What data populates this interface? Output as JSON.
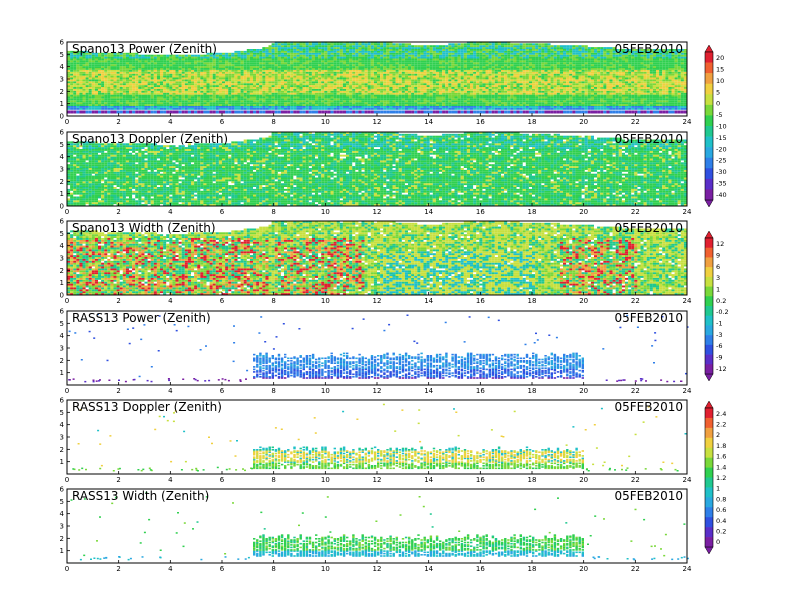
{
  "figure": {
    "date": "05FEB2010"
  },
  "colors": {
    "power_doppler_scale": [
      "#7a1fa2",
      "#5a2fc8",
      "#3050e0",
      "#2f7fe8",
      "#2aa8e0",
      "#20c0c8",
      "#20c890",
      "#30d050",
      "#7ad83a",
      "#c8e040",
      "#f0d040",
      "#f0a040",
      "#f06030",
      "#e02030"
    ],
    "width_scale": [
      "#7a1fa2",
      "#5a2fc8",
      "#3050e0",
      "#2f7fe8",
      "#2aa8e0",
      "#20c0c8",
      "#20c890",
      "#30d050",
      "#7ad83a",
      "#c8e040",
      "#f0d040",
      "#f0a040",
      "#f06030",
      "#e02030"
    ]
  },
  "chart_data": [
    {
      "type": "heatmap",
      "title": "Spano13 Power (Zenith)",
      "date": "05FEB2010",
      "x_ticks": [
        0,
        2,
        4,
        6,
        8,
        10,
        12,
        14,
        16,
        18,
        20,
        22,
        24
      ],
      "y_ticks": [
        0,
        1,
        2,
        3,
        4,
        5,
        6
      ],
      "xlim": [
        0,
        24
      ],
      "ylim": [
        0,
        6
      ],
      "fill_heights_by_hour": [
        [
          0,
          5.2
        ],
        [
          2,
          5.0
        ],
        [
          4,
          4.9
        ],
        [
          6,
          5.0
        ],
        [
          7.7,
          5.5
        ],
        [
          8,
          6.0
        ],
        [
          12,
          6.0
        ],
        [
          14,
          5.6
        ],
        [
          16,
          6.0
        ],
        [
          20,
          5.6
        ],
        [
          22,
          5.3
        ],
        [
          24,
          5.3
        ]
      ],
      "gap_below": 0.5,
      "palette": "power"
    },
    {
      "type": "heatmap",
      "title": "Spano13 Doppler (Zenith)",
      "date": "05FEB2010",
      "x_ticks": [
        0,
        2,
        4,
        6,
        8,
        10,
        12,
        14,
        16,
        18,
        20,
        22,
        24
      ],
      "y_ticks": [
        0,
        1,
        2,
        3,
        4,
        5,
        6
      ],
      "xlim": [
        0,
        24
      ],
      "ylim": [
        0,
        6
      ],
      "fill_heights_by_hour": [
        [
          0,
          5.2
        ],
        [
          2,
          5.0
        ],
        [
          4,
          4.9
        ],
        [
          6,
          5.0
        ],
        [
          7.7,
          5.5
        ],
        [
          8,
          6.0
        ],
        [
          12,
          6.0
        ],
        [
          14,
          5.6
        ],
        [
          16,
          6.0
        ],
        [
          20,
          5.6
        ],
        [
          22,
          5.3
        ],
        [
          24,
          5.3
        ]
      ],
      "gap_below": 0.0,
      "palette": "doppler"
    },
    {
      "type": "heatmap",
      "title": "Spano13 Width (Zenith)",
      "date": "05FEB2010",
      "x_ticks": [
        0,
        2,
        4,
        6,
        8,
        10,
        12,
        14,
        16,
        18,
        20,
        22,
        24
      ],
      "y_ticks": [
        0,
        1,
        2,
        3,
        4,
        5,
        6
      ],
      "xlim": [
        0,
        24
      ],
      "ylim": [
        0,
        6
      ],
      "fill_heights_by_hour": [
        [
          0,
          5.2
        ],
        [
          2,
          5.0
        ],
        [
          4,
          4.9
        ],
        [
          6,
          5.0
        ],
        [
          7.7,
          5.5
        ],
        [
          8,
          6.0
        ],
        [
          12,
          6.0
        ],
        [
          14,
          5.6
        ],
        [
          16,
          6.0
        ],
        [
          20,
          5.6
        ],
        [
          22,
          5.3
        ],
        [
          24,
          5.3
        ]
      ],
      "gap_below": 0.0,
      "palette": "width"
    },
    {
      "type": "heatmap",
      "title": "RASS13 Power (Zenith)",
      "date": "05FEB2010",
      "x_ticks": [
        0,
        2,
        4,
        6,
        8,
        10,
        12,
        14,
        16,
        18,
        20,
        22,
        24
      ],
      "y_ticks": [
        1,
        2,
        3,
        4,
        5,
        6
      ],
      "xlim": [
        0,
        24
      ],
      "ylim": [
        0,
        6
      ],
      "core_band": [
        7.2,
        20.0,
        0.5,
        2.6
      ],
      "palette": "rass_power"
    },
    {
      "type": "heatmap",
      "title": "RASS13 Doppler (Zenith)",
      "date": "05FEB2010",
      "x_ticks": [
        0,
        2,
        4,
        6,
        8,
        10,
        12,
        14,
        16,
        18,
        20,
        22,
        24
      ],
      "y_ticks": [
        1,
        2,
        3,
        4,
        5,
        6
      ],
      "xlim": [
        0,
        24
      ],
      "ylim": [
        0,
        6
      ],
      "core_band": [
        7.2,
        20.0,
        0.4,
        2.2
      ],
      "palette": "rass_doppler"
    },
    {
      "type": "heatmap",
      "title": "RASS13 Width (Zenith)",
      "date": "05FEB2010",
      "x_ticks": [
        0,
        2,
        4,
        6,
        8,
        10,
        12,
        14,
        16,
        18,
        20,
        22,
        24
      ],
      "y_ticks": [
        1,
        2,
        3,
        4,
        5,
        6
      ],
      "xlim": [
        0,
        24
      ],
      "ylim": [
        0,
        6
      ],
      "core_band": [
        7.2,
        20.0,
        0.5,
        2.3
      ],
      "palette": "rass_width"
    }
  ],
  "colorbars": [
    {
      "name": "colorbar-spano-power-doppler",
      "labels": [
        "20",
        "15",
        "10",
        "5",
        "0",
        "-5",
        "-10",
        "-15",
        "-20",
        "-25",
        "-30",
        "-35",
        "-40"
      ]
    },
    {
      "name": "colorbar-spano-width-rass-power",
      "labels": [
        "12",
        "9",
        "6",
        "3",
        "1",
        "0.2",
        "-0.2",
        "-1",
        "-3",
        "-6",
        "-9",
        "-12"
      ]
    },
    {
      "name": "colorbar-rass-doppler-width",
      "labels": [
        "2.4",
        "2.2",
        "2",
        "1.8",
        "1.6",
        "1.4",
        "1.2",
        "1",
        "0.8",
        "0.6",
        "0.4",
        "0.2",
        "0"
      ]
    }
  ]
}
